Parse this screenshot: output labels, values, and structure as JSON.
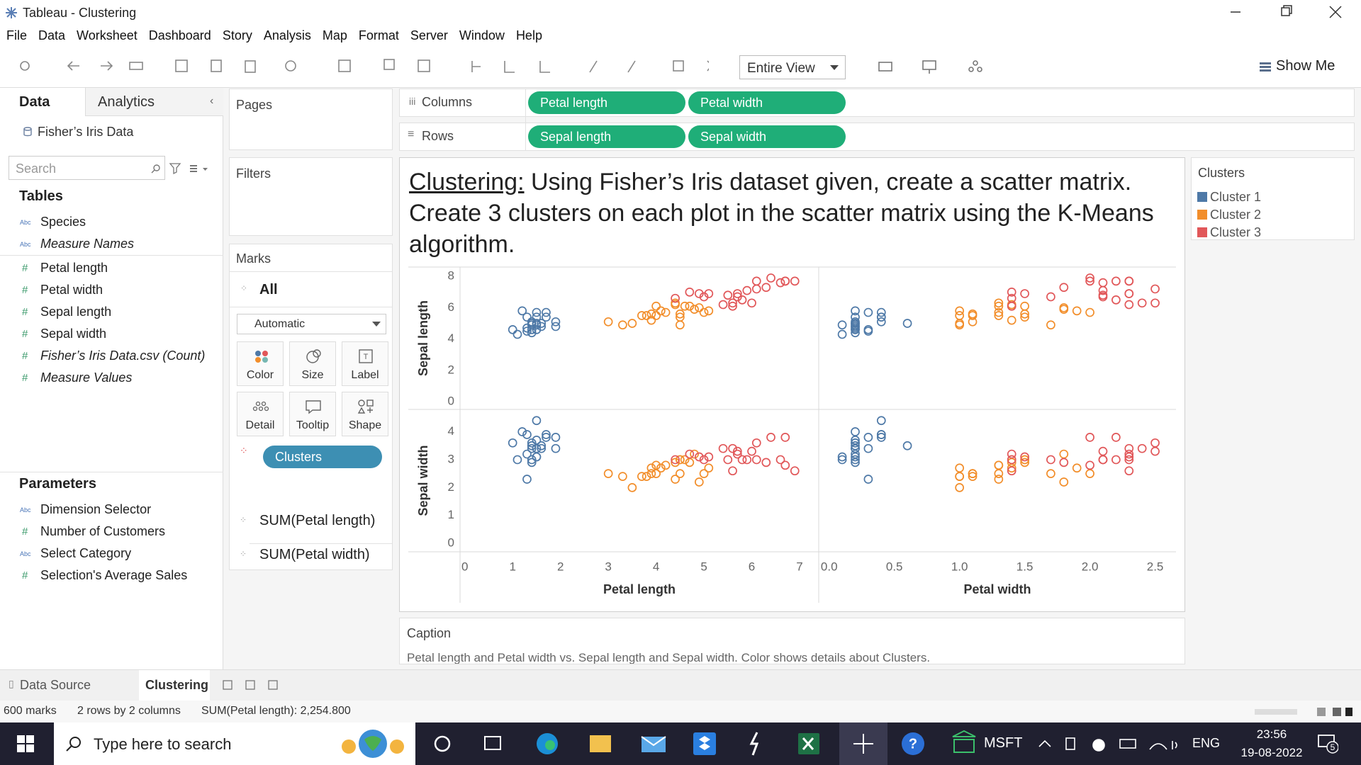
{
  "window": {
    "title": "Tableau - Clustering"
  },
  "menu": [
    "File",
    "Data",
    "Worksheet",
    "Dashboard",
    "Story",
    "Analysis",
    "Map",
    "Format",
    "Server",
    "Window",
    "Help"
  ],
  "toolbar": {
    "fit": "Entire View",
    "show_me": "Show Me"
  },
  "data_pane": {
    "tabs": [
      "Data",
      "Analytics"
    ],
    "source": "Fisher’s Iris Data",
    "search": "Search",
    "tables_heading": "Tables",
    "fields": [
      {
        "type": "Abc",
        "name": "Species",
        "italic": false
      },
      {
        "type": "Abc",
        "name": "Measure Names",
        "italic": true
      },
      {
        "type": "#",
        "name": "Petal length",
        "italic": false
      },
      {
        "type": "#",
        "name": "Petal width",
        "italic": false
      },
      {
        "type": "#",
        "name": "Sepal length",
        "italic": false
      },
      {
        "type": "#",
        "name": "Sepal width",
        "italic": false
      },
      {
        "type": "#",
        "name": "Fisher’s Iris Data.csv (Count)",
        "italic": true
      },
      {
        "type": "#",
        "name": "Measure Values",
        "italic": true
      }
    ],
    "parameters_heading": "Parameters",
    "parameters": [
      {
        "type": "Abc",
        "name": "Dimension Selector"
      },
      {
        "type": "#",
        "name": "Number of Customers"
      },
      {
        "type": "Abc",
        "name": "Select Category"
      },
      {
        "type": "#",
        "name": "Selection's Average Sales"
      }
    ]
  },
  "pages": "Pages",
  "filters": "Filters",
  "marks": {
    "title": "Marks",
    "all": "All",
    "mark_type": "Automatic",
    "buttons": [
      "Color",
      "Size",
      "Label",
      "Detail",
      "Tooltip",
      "Shape"
    ],
    "pill": "Clusters",
    "measures": [
      "SUM(Petal length)",
      "SUM(Petal width)"
    ]
  },
  "shelves": {
    "columns_label": "Columns",
    "columns": [
      "Petal length",
      "Petal width"
    ],
    "rows_label": "Rows",
    "rows": [
      "Sepal length",
      "Sepal width"
    ]
  },
  "chart_data": {
    "type": "scatter-matrix",
    "title_lead": "Clustering:",
    "title": " Using Fisher’s Iris dataset given, create a scatter matrix. Create 3 clusters on each plot in the scatter matrix using the K-Means algorithm.",
    "legend_title": "Clusters",
    "columns": [
      {
        "label": "Petal length",
        "xlim": [
          -0.1,
          7.4
        ],
        "xticks": [
          0,
          1,
          2,
          3,
          4,
          5,
          6,
          7
        ]
      },
      {
        "label": "Petal width",
        "xlim": [
          -0.08,
          2.66
        ],
        "xticks": [
          {
            "value": 0,
            "label": "0.0"
          },
          0.5,
          {
            "value": 1,
            "label": "1.0"
          },
          1.5,
          {
            "value": 2,
            "label": "2.0"
          },
          2.5
        ]
      }
    ],
    "rows": [
      {
        "label": "Sepal length",
        "ylim": [
          -0.5,
          8.6
        ],
        "yticks": [
          0,
          2,
          4,
          6,
          8
        ]
      },
      {
        "label": "Sepal width",
        "ylim": [
          -0.3,
          4.8
        ],
        "yticks": [
          0,
          1,
          2,
          3,
          4
        ]
      }
    ],
    "series": [
      {
        "name": "Cluster 1",
        "color": "#4e79a7",
        "x": [
          [
            1.4,
            1.4,
            1.3,
            1.5,
            1.4,
            1.7,
            1.4,
            1.5,
            1.4,
            1.5,
            1.5,
            1.6,
            1.1,
            1.2,
            1.5,
            1.3,
            1.7,
            1.0,
            1.9,
            1.6,
            1.3,
            1.9
          ],
          [
            0.2,
            0.2,
            0.2,
            0.2,
            0.2,
            0.4,
            0.3,
            0.2,
            0.2,
            0.1,
            0.2,
            0.2,
            0.1,
            0.2,
            0.4,
            0.4,
            0.3,
            0.2,
            0.2,
            0.6,
            0.3,
            0.4
          ]
        ],
        "y": [
          [
            5.1,
            4.9,
            4.7,
            4.6,
            5.0,
            5.4,
            4.6,
            5.0,
            4.4,
            4.9,
            5.4,
            4.8,
            4.3,
            5.8,
            5.7,
            5.4,
            5.7,
            4.6,
            4.8,
            5.0,
            4.5,
            5.1
          ],
          [
            3.5,
            3.0,
            3.2,
            3.1,
            3.6,
            3.9,
            3.4,
            3.4,
            2.9,
            3.1,
            3.7,
            3.4,
            3.0,
            4.0,
            4.4,
            3.9,
            3.8,
            3.6,
            3.4,
            3.5,
            2.3,
            3.8
          ]
        ]
      },
      {
        "name": "Cluster 2",
        "color": "#f28e2b",
        "x": [
          [
            3.3,
            3.0,
            3.5,
            3.9,
            4.0,
            4.5,
            4.1,
            3.9,
            4.8,
            4.0,
            4.2,
            4.4,
            3.7,
            3.8,
            4.5,
            4.7,
            4.4,
            5.0,
            5.1,
            4.9,
            4.5,
            4.6
          ],
          [
            1.0,
            1.1,
            1.0,
            1.4,
            1.3,
            1.5,
            1.0,
            1.1,
            1.8,
            1.3,
            1.3,
            1.4,
            1.0,
            1.1,
            1.5,
            1.5,
            1.3,
            2.0,
            1.9,
            1.8,
            1.7,
            1.4
          ]
        ],
        "y": [
          [
            4.9,
            5.1,
            5.0,
            5.2,
            5.5,
            5.6,
            5.8,
            5.6,
            5.9,
            6.1,
            5.7,
            6.2,
            5.5,
            5.5,
            5.4,
            6.1,
            6.3,
            5.7,
            5.8,
            6.0,
            4.9,
            6.1
          ],
          [
            2.4,
            2.5,
            2.0,
            2.7,
            2.5,
            3.0,
            2.7,
            2.5,
            3.2,
            2.8,
            2.8,
            2.9,
            2.4,
            2.4,
            3.0,
            2.9,
            2.3,
            2.5,
            2.7,
            2.2,
            2.5,
            3.0
          ]
        ]
      },
      {
        "name": "Cluster 3",
        "color": "#e15759",
        "x": [
          [
            4.7,
            4.9,
            5.6,
            6.0,
            5.9,
            6.6,
            6.3,
            6.1,
            5.5,
            5.8,
            6.7,
            6.9,
            5.7,
            6.7,
            5.7,
            6.4,
            5.6,
            6.1,
            5.1,
            5.4,
            5.0,
            4.4
          ],
          [
            1.4,
            1.5,
            2.4,
            2.5,
            2.1,
            2.1,
            1.8,
            2.5,
            2.1,
            2.2,
            2.2,
            2.3,
            2.3,
            2.0,
            2.1,
            2.0,
            1.4,
            2.3,
            2.3,
            2.3,
            1.7,
            1.4
          ]
        ],
        "y": [
          [
            7.0,
            6.9,
            6.3,
            6.3,
            7.1,
            7.6,
            7.3,
            7.2,
            6.8,
            6.5,
            7.7,
            7.7,
            6.9,
            7.7,
            6.7,
            7.9,
            6.1,
            7.7,
            6.9,
            6.2,
            6.7,
            6.6
          ],
          [
            3.2,
            3.1,
            3.4,
            3.3,
            3.0,
            3.0,
            2.9,
            3.6,
            3.0,
            3.0,
            3.8,
            2.6,
            3.2,
            2.8,
            3.3,
            3.8,
            2.6,
            3.0,
            3.1,
            3.4,
            3.0,
            3.0
          ]
        ]
      }
    ]
  },
  "caption": {
    "title": "Caption",
    "text": "Petal length and Petal width vs. Sepal length and Sepal width.  Color shows details about Clusters."
  },
  "sheet_tabs": [
    "Data Source",
    "Clustering"
  ],
  "status": [
    "600 marks",
    "2 rows by 2 columns",
    "SUM(Petal length): 2,254.800"
  ],
  "taskbar": {
    "search": "Type here to search",
    "stock": "MSFT",
    "language": "ENG",
    "time": "23:56",
    "date": "19-08-2022",
    "notifications": "5"
  }
}
